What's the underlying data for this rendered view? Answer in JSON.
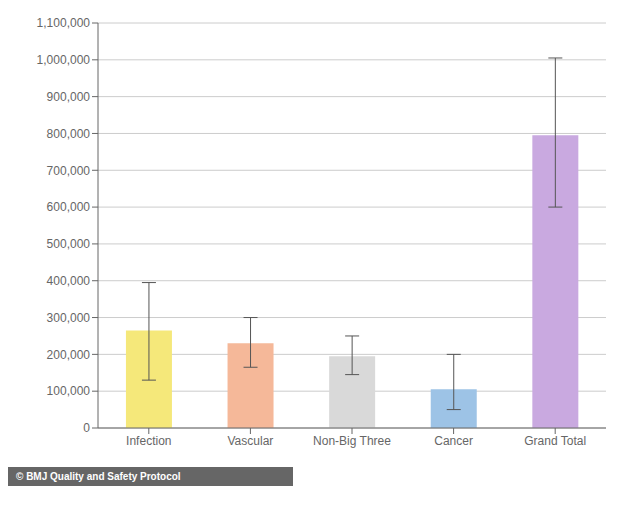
{
  "chart_data": {
    "type": "bar",
    "categories": [
      "Infection",
      "Vascular",
      "Non-Big Three",
      "Cancer",
      "Grand Total"
    ],
    "values": [
      265000,
      230000,
      195000,
      105000,
      795000
    ],
    "error_lower": [
      135000,
      65000,
      50000,
      55000,
      195000
    ],
    "error_upper": [
      130000,
      70000,
      55000,
      95000,
      210000
    ],
    "colors": [
      "#f5e87a",
      "#f5b899",
      "#d9d9d9",
      "#9dc3e6",
      "#c9a9e0"
    ],
    "ylim": [
      0,
      1100000
    ],
    "yticks": [
      0,
      {
        "value": 100000,
        "label": "100,000"
      },
      {
        "value": 200000,
        "label": "200,000"
      },
      {
        "value": 300000,
        "label": "300,000"
      },
      {
        "value": 400000,
        "label": "400,000"
      },
      {
        "value": 500000,
        "label": "500,000"
      },
      {
        "value": 600000,
        "label": "600,000"
      },
      {
        "value": 700000,
        "label": "700,000"
      },
      {
        "value": 800000,
        "label": "800,000"
      },
      {
        "value": 900000,
        "label": "900,000"
      },
      {
        "value": 1000000,
        "label": "1,000,000"
      },
      {
        "value": 1100000,
        "label": "1,100,000"
      }
    ],
    "grid": true,
    "annotations": [
      "© BMJ Quality and Safety Protocol"
    ]
  }
}
